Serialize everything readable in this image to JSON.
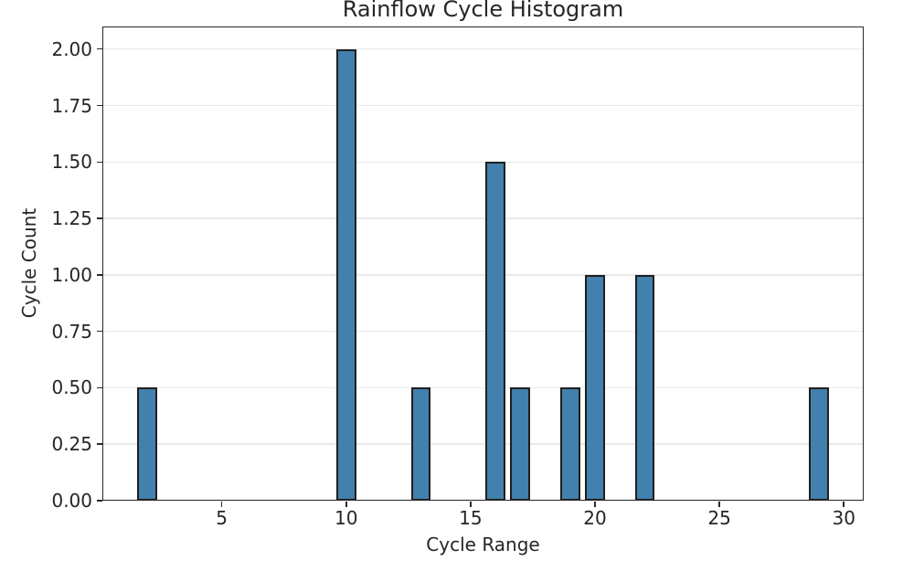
{
  "chart_data": {
    "type": "bar",
    "title": "Rainflow Cycle Histogram",
    "xlabel": "Cycle Range",
    "ylabel": "Cycle Count",
    "x": [
      2,
      10,
      13,
      16,
      17,
      19,
      20,
      22,
      29
    ],
    "values": [
      0.5,
      2.0,
      0.5,
      1.5,
      0.5,
      0.5,
      1.0,
      1.0,
      0.5
    ],
    "bar_width": 0.8,
    "xlim": [
      0.2,
      30.8
    ],
    "ylim": [
      0.0,
      2.1
    ],
    "xticks": [
      5,
      10,
      15,
      20,
      25,
      30
    ],
    "xtick_labels": [
      "5",
      "10",
      "15",
      "20",
      "25",
      "30"
    ],
    "yticks": [
      0.0,
      0.25,
      0.5,
      0.75,
      1.0,
      1.25,
      1.5,
      1.75,
      2.0
    ],
    "ytick_labels": [
      "0.00",
      "0.25",
      "0.50",
      "0.75",
      "1.00",
      "1.25",
      "1.50",
      "1.75",
      "2.00"
    ],
    "grid": "horizontal-only",
    "legend": "none",
    "colors": {
      "bar_fill": "#4280ad",
      "bar_edge": "#1f1f1f",
      "grid": "#e9e9e9",
      "axis": "#2a2a2a",
      "text": "#262626",
      "background": "#ffffff"
    }
  }
}
